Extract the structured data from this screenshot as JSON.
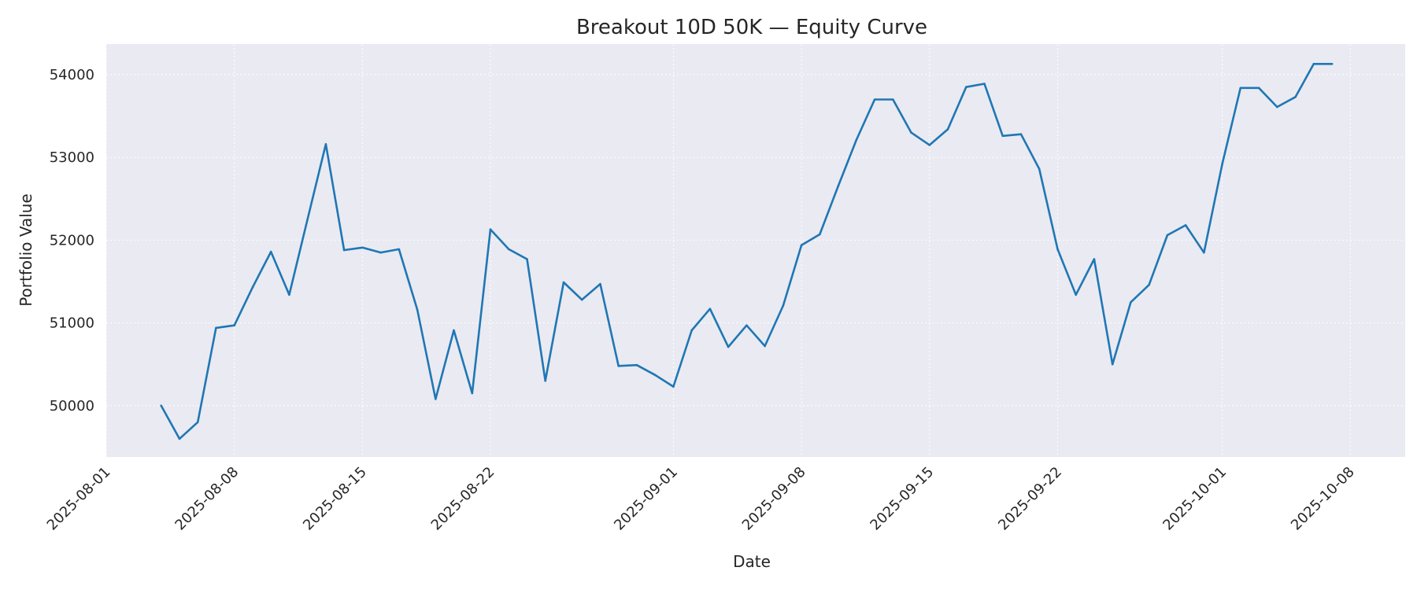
{
  "chart_data": {
    "type": "line",
    "title": "Breakout 10D 50K — Equity Curve",
    "xlabel": "Date",
    "ylabel": "Portfolio Value",
    "grid": true,
    "xlim": [
      "2025-08-01",
      "2025-10-11"
    ],
    "ylim": [
      49380,
      54370
    ],
    "x_ticks": [
      "2025-08-01",
      "2025-08-08",
      "2025-08-15",
      "2025-08-22",
      "2025-09-01",
      "2025-09-08",
      "2025-09-15",
      "2025-09-22",
      "2025-10-01",
      "2025-10-08"
    ],
    "y_ticks": [
      50000,
      51000,
      52000,
      53000,
      54000
    ],
    "colors": {
      "line": "#1f77b4",
      "plot_bg": "#eaeaf2",
      "grid": "#ffffff"
    },
    "series": [
      {
        "x": [
          "2025-08-04",
          "2025-08-05",
          "2025-08-06",
          "2025-08-07",
          "2025-08-08",
          "2025-08-09",
          "2025-08-10",
          "2025-08-11",
          "2025-08-12",
          "2025-08-13",
          "2025-08-14",
          "2025-08-15",
          "2025-08-16",
          "2025-08-17",
          "2025-08-18",
          "2025-08-19",
          "2025-08-20",
          "2025-08-21",
          "2025-08-22",
          "2025-08-23",
          "2025-08-24",
          "2025-08-25",
          "2025-08-26",
          "2025-08-27",
          "2025-08-28",
          "2025-08-29",
          "2025-08-30",
          "2025-08-31",
          "2025-09-01",
          "2025-09-02",
          "2025-09-03",
          "2025-09-04",
          "2025-09-05",
          "2025-09-06",
          "2025-09-07",
          "2025-09-08",
          "2025-09-09",
          "2025-09-10",
          "2025-09-11",
          "2025-09-12",
          "2025-09-13",
          "2025-09-14",
          "2025-09-15",
          "2025-09-16",
          "2025-09-17",
          "2025-09-18",
          "2025-09-19",
          "2025-09-20",
          "2025-09-21",
          "2025-09-22",
          "2025-09-23",
          "2025-09-24",
          "2025-09-25",
          "2025-09-26",
          "2025-09-27",
          "2025-09-28",
          "2025-09-29",
          "2025-09-30",
          "2025-10-01",
          "2025-10-02",
          "2025-10-03",
          "2025-10-04",
          "2025-10-05",
          "2025-10-06",
          "2025-10-07"
        ],
        "values": [
          50000,
          49600,
          49800,
          50940,
          50970,
          51430,
          51860,
          51340,
          52250,
          53160,
          51880,
          51910,
          51850,
          51890,
          51160,
          50080,
          50910,
          50150,
          52130,
          51890,
          51770,
          50300,
          51490,
          51280,
          51470,
          50480,
          50490,
          50370,
          50230,
          50910,
          51170,
          50710,
          50970,
          50720,
          51210,
          51940,
          52070,
          52650,
          53210,
          53700,
          53700,
          53300,
          53150,
          53340,
          53850,
          53890,
          53260,
          53280,
          52860,
          51890,
          51340,
          51770,
          50500,
          51250,
          51460,
          52060,
          52180,
          51850,
          52920,
          53840,
          53840,
          53610,
          53730,
          54130,
          54130
        ]
      }
    ]
  }
}
